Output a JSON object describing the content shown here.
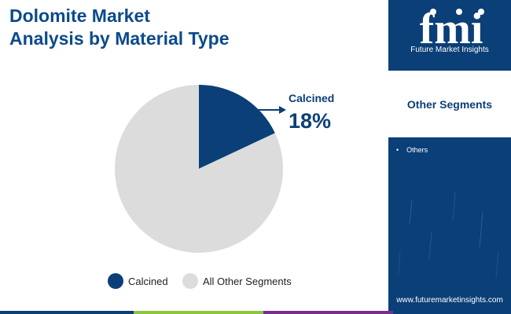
{
  "title": {
    "line1": "Dolomite Market",
    "line2": "Analysis by Material Type"
  },
  "chart_data": {
    "type": "pie",
    "title": "Dolomite Market Analysis by Material Type",
    "slices": [
      {
        "label": "Calcined",
        "value": 18,
        "color": "#0b3f77"
      },
      {
        "label": "All Other Segments",
        "value": 82,
        "color": "#dcdcdc"
      }
    ],
    "callout": {
      "label": "Calcined",
      "value_text": "18%"
    },
    "legend_position": "bottom"
  },
  "brand": {
    "logo_letters": "fmi",
    "name": "Future Market Insights",
    "website": "www.futuremarketinsights.com"
  },
  "sidebar": {
    "heading": "Other Segments",
    "items": [
      "Others"
    ]
  },
  "colors": {
    "title": "#0b4a8b",
    "sidebar": "#0b3f77",
    "bottom_bar": [
      "#0b3f77",
      "#8cc63f",
      "#7b2d8e",
      "#0b3f77"
    ]
  }
}
